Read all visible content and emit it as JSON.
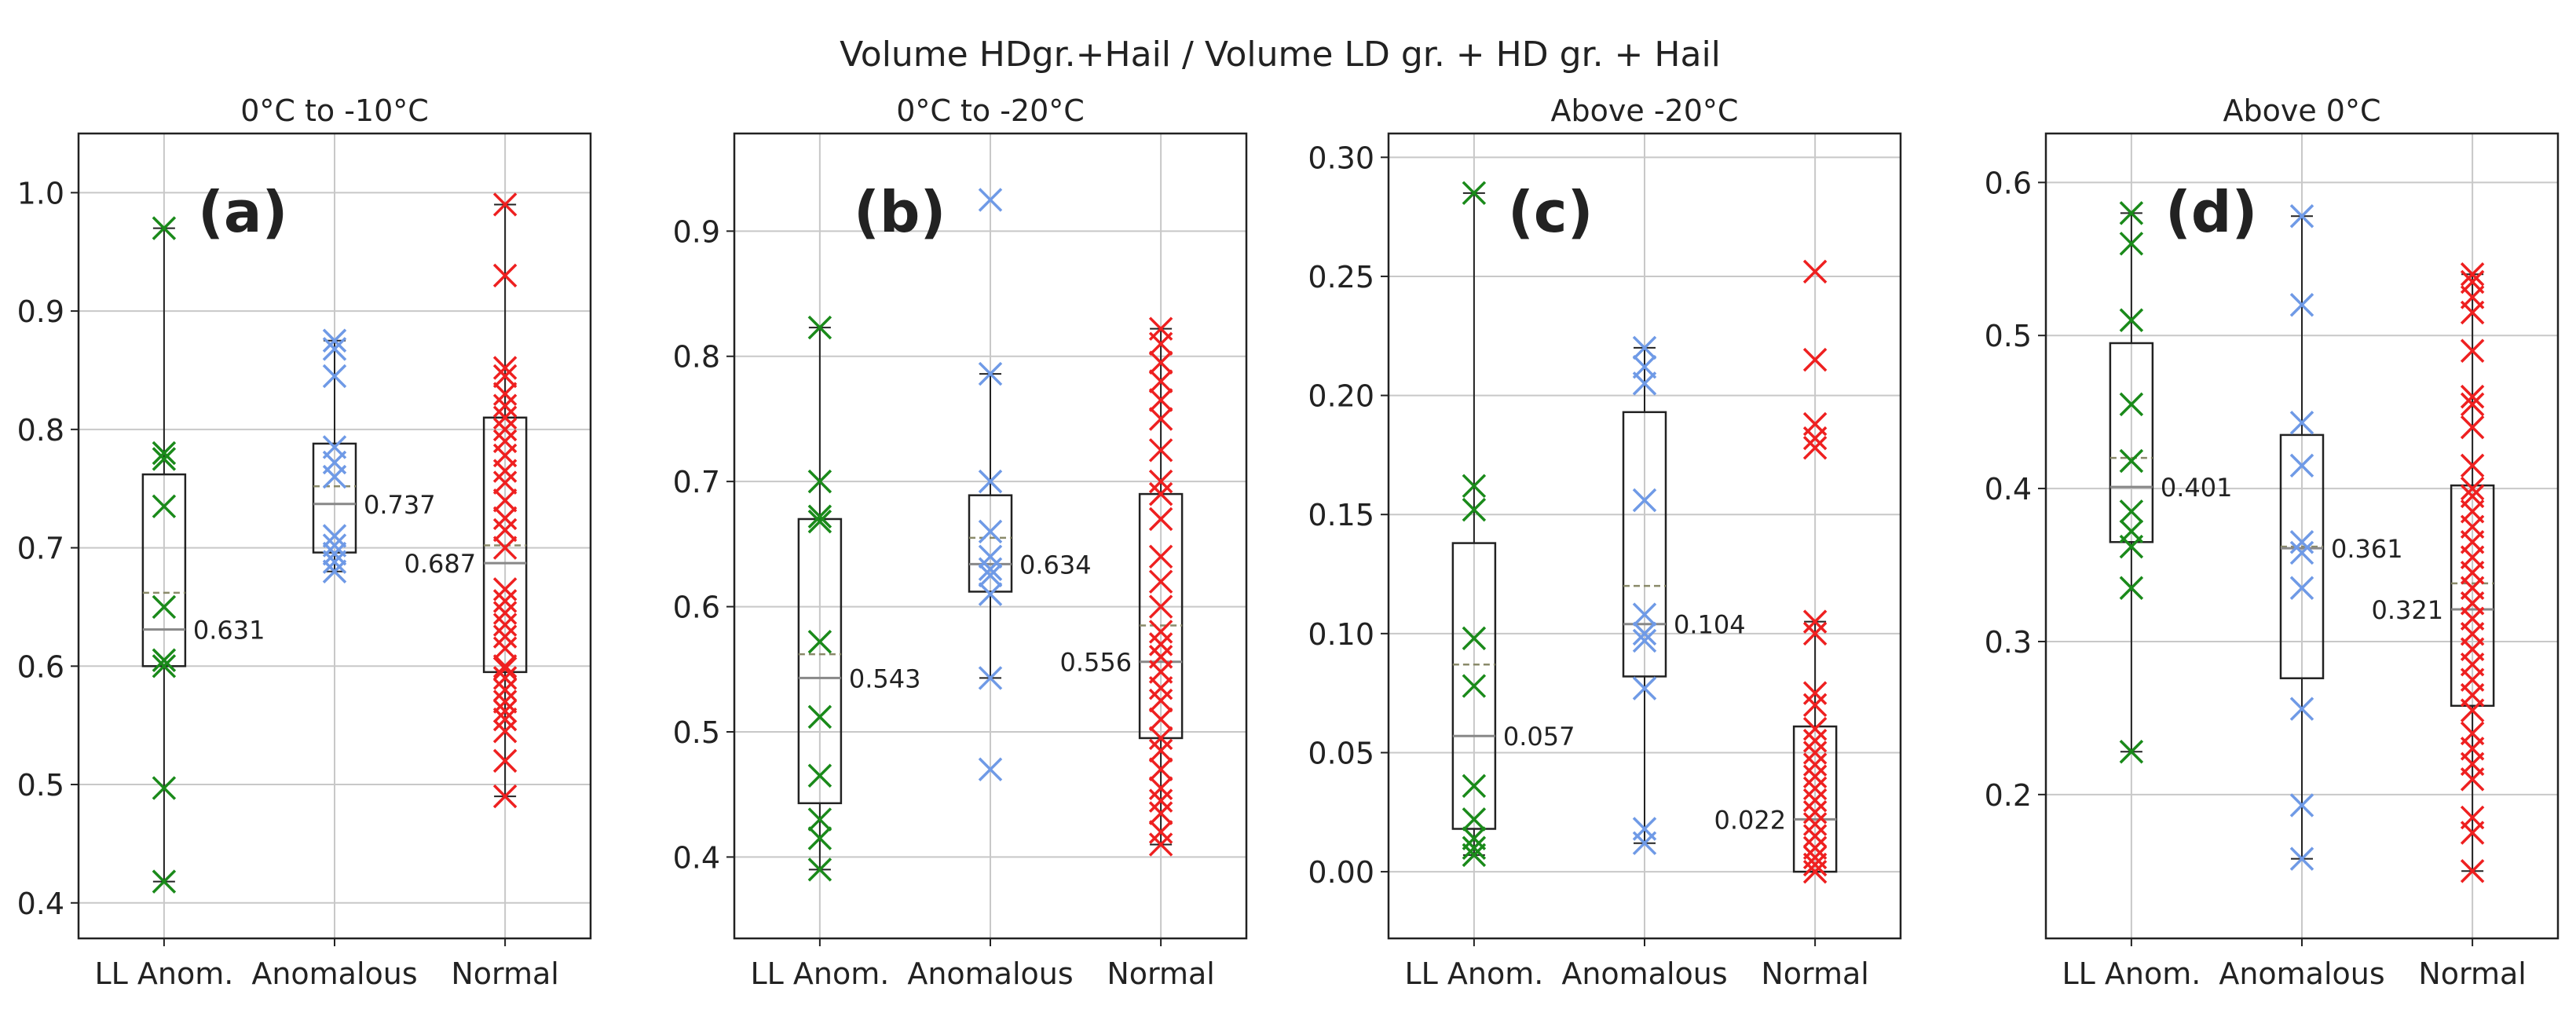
{
  "figure": {
    "suptitle": "Volume HDgr.+Hail / Volume LD gr. + HD gr. + Hail"
  },
  "colors": {
    "LL Anom.": "#1a8a1a",
    "Anomalous": "#6f9ae6",
    "Normal": "#ee2020",
    "box": "#222222",
    "median": "#888888",
    "mean": "#8a8a6a",
    "grid": "#c8c8c8"
  },
  "chart_data": [
    {
      "type": "box",
      "panel_label": "(a)",
      "title": "0°C to -10°C",
      "categories": [
        "LL Anom.",
        "Anomalous",
        "Normal"
      ],
      "ylim": [
        0.37,
        1.05
      ],
      "yticks": [
        "0.4",
        "0.5",
        "0.6",
        "0.7",
        "0.8",
        "0.9",
        "1.0"
      ],
      "grid": true,
      "series": [
        {
          "name": "LL Anom.",
          "q1": 0.6,
          "q3": 0.762,
          "median": 0.631,
          "mean": 0.662,
          "whisker_low": 0.418,
          "whisker_high": 0.97,
          "median_label": "0.631",
          "label_side": "right",
          "points": [
            0.418,
            0.497,
            0.6,
            0.605,
            0.65,
            0.735,
            0.775,
            0.78,
            0.97
          ]
        },
        {
          "name": "Anomalous",
          "q1": 0.696,
          "q3": 0.788,
          "median": 0.737,
          "mean": 0.752,
          "whisker_low": 0.68,
          "whisker_high": 0.875,
          "median_label": "0.737",
          "label_side": "right",
          "points": [
            0.68,
            0.688,
            0.695,
            0.702,
            0.71,
            0.76,
            0.772,
            0.785,
            0.845,
            0.868,
            0.875
          ]
        },
        {
          "name": "Normal",
          "q1": 0.595,
          "q3": 0.81,
          "median": 0.687,
          "mean": 0.702,
          "whisker_low": 0.49,
          "whisker_high": 0.99,
          "median_label": "0.687",
          "label_side": "left",
          "points": [
            0.49,
            0.52,
            0.545,
            0.555,
            0.562,
            0.57,
            0.58,
            0.59,
            0.598,
            0.6,
            0.615,
            0.625,
            0.635,
            0.645,
            0.655,
            0.665,
            0.7,
            0.715,
            0.725,
            0.74,
            0.755,
            0.765,
            0.778,
            0.79,
            0.8,
            0.81,
            0.82,
            0.83,
            0.845,
            0.852,
            0.93,
            0.99
          ]
        }
      ]
    },
    {
      "type": "box",
      "panel_label": "(b)",
      "title": "0°C to -20°C",
      "categories": [
        "LL Anom.",
        "Anomalous",
        "Normal"
      ],
      "ylim": [
        0.335,
        0.978
      ],
      "yticks": [
        "0.4",
        "0.5",
        "0.6",
        "0.7",
        "0.8",
        "0.9"
      ],
      "grid": true,
      "series": [
        {
          "name": "LL Anom.",
          "q1": 0.443,
          "q3": 0.67,
          "median": 0.543,
          "mean": 0.562,
          "whisker_low": 0.39,
          "whisker_high": 0.823,
          "median_label": "0.543",
          "label_side": "right",
          "points": [
            0.39,
            0.415,
            0.43,
            0.465,
            0.512,
            0.572,
            0.668,
            0.672,
            0.7,
            0.823
          ]
        },
        {
          "name": "Anomalous",
          "q1": 0.612,
          "q3": 0.689,
          "median": 0.634,
          "mean": 0.655,
          "whisker_low": 0.543,
          "whisker_high": 0.786,
          "median_label": "0.634",
          "label_side": "right",
          "points": [
            0.47,
            0.543,
            0.61,
            0.625,
            0.63,
            0.64,
            0.66,
            0.7,
            0.786,
            0.925
          ]
        },
        {
          "name": "Normal",
          "q1": 0.495,
          "q3": 0.69,
          "median": 0.556,
          "mean": 0.585,
          "whisker_low": 0.41,
          "whisker_high": 0.822,
          "median_label": "0.556",
          "label_side": "left",
          "points": [
            0.41,
            0.42,
            0.435,
            0.445,
            0.455,
            0.47,
            0.485,
            0.495,
            0.51,
            0.525,
            0.535,
            0.548,
            0.56,
            0.57,
            0.58,
            0.6,
            0.62,
            0.64,
            0.67,
            0.69,
            0.7,
            0.725,
            0.75,
            0.765,
            0.78,
            0.795,
            0.81,
            0.822
          ]
        }
      ]
    },
    {
      "type": "box",
      "panel_label": "(c)",
      "title": "Above -20°C",
      "categories": [
        "LL Anom.",
        "Anomalous",
        "Normal"
      ],
      "ylim": [
        -0.028,
        0.31
      ],
      "yticks": [
        "0.00",
        "0.05",
        "0.10",
        "0.15",
        "0.20",
        "0.25",
        "0.30"
      ],
      "grid": true,
      "series": [
        {
          "name": "LL Anom.",
          "q1": 0.018,
          "q3": 0.138,
          "median": 0.057,
          "mean": 0.087,
          "whisker_low": 0.007,
          "whisker_high": 0.285,
          "median_label": "0.057",
          "label_side": "right",
          "points": [
            0.007,
            0.01,
            0.014,
            0.022,
            0.036,
            0.078,
            0.098,
            0.152,
            0.162,
            0.285
          ]
        },
        {
          "name": "Anomalous",
          "q1": 0.082,
          "q3": 0.193,
          "median": 0.104,
          "mean": 0.12,
          "whisker_low": 0.012,
          "whisker_high": 0.22,
          "median_label": "0.104",
          "label_side": "right",
          "points": [
            0.012,
            0.018,
            0.077,
            0.097,
            0.1,
            0.108,
            0.156,
            0.205,
            0.212,
            0.22
          ]
        },
        {
          "name": "Normal",
          "q1": 0.0,
          "q3": 0.061,
          "median": 0.022,
          "mean": 0.022,
          "whisker_low": 0.0,
          "whisker_high": 0.105,
          "median_label": "0.022",
          "label_side": "left",
          "points": [
            0.0,
            0.003,
            0.006,
            0.01,
            0.015,
            0.02,
            0.025,
            0.03,
            0.035,
            0.04,
            0.045,
            0.05,
            0.055,
            0.06,
            0.07,
            0.075,
            0.1,
            0.105,
            0.178,
            0.182,
            0.188,
            0.215,
            0.252
          ]
        }
      ]
    },
    {
      "type": "box",
      "panel_label": "(d)",
      "title": "Above 0°C",
      "categories": [
        "LL Anom.",
        "Anomalous",
        "Normal"
      ],
      "ylim": [
        0.106,
        0.632
      ],
      "yticks": [
        "0.2",
        "0.3",
        "0.4",
        "0.5",
        "0.6"
      ],
      "grid": true,
      "series": [
        {
          "name": "LL Anom.",
          "q1": 0.365,
          "q3": 0.495,
          "median": 0.401,
          "mean": 0.42,
          "whisker_low": 0.228,
          "whisker_high": 0.58,
          "median_label": "0.401",
          "label_side": "right",
          "points": [
            0.228,
            0.335,
            0.362,
            0.372,
            0.385,
            0.418,
            0.455,
            0.51,
            0.56,
            0.58
          ]
        },
        {
          "name": "Anomalous",
          "q1": 0.276,
          "q3": 0.435,
          "median": 0.361,
          "mean": 0.362,
          "whisker_low": 0.158,
          "whisker_high": 0.578,
          "median_label": "0.361",
          "label_side": "right",
          "points": [
            0.158,
            0.193,
            0.256,
            0.335,
            0.358,
            0.365,
            0.415,
            0.443,
            0.52,
            0.578
          ]
        },
        {
          "name": "Normal",
          "q1": 0.258,
          "q3": 0.402,
          "median": 0.321,
          "mean": 0.338,
          "whisker_low": 0.15,
          "whisker_high": 0.54,
          "median_label": "0.321",
          "label_side": "left",
          "points": [
            0.15,
            0.175,
            0.185,
            0.21,
            0.22,
            0.23,
            0.24,
            0.255,
            0.265,
            0.275,
            0.285,
            0.295,
            0.305,
            0.315,
            0.325,
            0.335,
            0.345,
            0.355,
            0.365,
            0.375,
            0.385,
            0.395,
            0.4,
            0.415,
            0.44,
            0.455,
            0.46,
            0.49,
            0.515,
            0.525,
            0.535,
            0.54
          ]
        }
      ]
    }
  ]
}
